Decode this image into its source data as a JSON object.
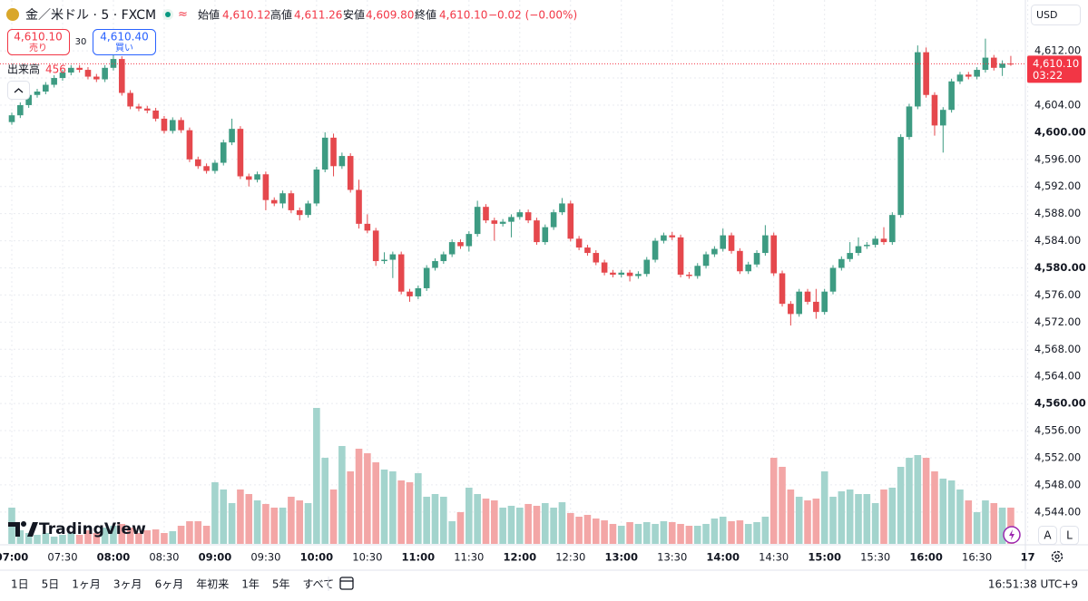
{
  "header": {
    "symbol": "金／米ドル · 5 · FXCM",
    "open_label": "始値",
    "open": "4,610.12",
    "high_label": "高値",
    "high": "4,611.26",
    "low_label": "安値",
    "low": "4,609.80",
    "close_label": "終値",
    "close": "4,610.10",
    "change": "−0.02 (−0.00%)",
    "sell_price": "4,610.10",
    "sell_label": "売り",
    "spread": "30",
    "buy_price": "4,610.40",
    "buy_label": "買い",
    "currency": "USD"
  },
  "chart_data": {
    "type": "candlestick",
    "volume_label": "出来高",
    "last_price_label": "4,610.10",
    "countdown": "03:22",
    "up_color": "#3d9b82",
    "down_color": "#e5484d",
    "volume_up_color": "#a3d4cd",
    "volume_down_color": "#f3a6a6",
    "grid": true,
    "x": [
      "07:00",
      "07:05",
      "07:10",
      "07:15",
      "07:20",
      "07:25",
      "07:30",
      "07:35",
      "07:40",
      "07:45",
      "07:50",
      "07:55",
      "08:00",
      "08:05",
      "08:10",
      "08:15",
      "08:20",
      "08:25",
      "08:30",
      "08:35",
      "08:40",
      "08:45",
      "08:50",
      "08:55",
      "09:00",
      "09:05",
      "09:10",
      "09:15",
      "09:20",
      "09:25",
      "09:30",
      "09:35",
      "09:40",
      "09:45",
      "09:50",
      "09:55",
      "10:00",
      "10:05",
      "10:10",
      "10:15",
      "10:20",
      "10:25",
      "10:30",
      "10:35",
      "10:40",
      "10:45",
      "10:50",
      "10:55",
      "11:00",
      "11:05",
      "11:10",
      "11:15",
      "11:20",
      "11:25",
      "11:30",
      "11:35",
      "11:40",
      "11:45",
      "11:50",
      "11:55",
      "12:00",
      "12:05",
      "12:10",
      "12:15",
      "12:20",
      "12:25",
      "12:30",
      "12:35",
      "12:40",
      "12:45",
      "12:50",
      "12:55",
      "13:00",
      "13:05",
      "13:10",
      "13:15",
      "13:20",
      "13:25",
      "13:30",
      "13:35",
      "13:40",
      "13:45",
      "13:50",
      "13:55",
      "14:00",
      "14:05",
      "14:10",
      "14:15",
      "14:20",
      "14:25",
      "14:30",
      "14:35",
      "14:40",
      "14:45",
      "14:50",
      "14:55",
      "15:00",
      "15:05",
      "15:10",
      "15:15",
      "15:20",
      "15:25",
      "15:30",
      "15:35",
      "15:40",
      "15:45",
      "15:50",
      "15:55",
      "16:00",
      "16:05",
      "16:10",
      "16:15",
      "16:20",
      "16:25",
      "16:30",
      "16:35",
      "16:40",
      "16:45",
      "16:50"
    ],
    "open": [
      4601.5,
      4602.5,
      4604.0,
      4605.5,
      4606.0,
      4607.0,
      4608.0,
      4608.8,
      4609.5,
      4609.2,
      4608.2,
      4607.8,
      4609.5,
      4610.8,
      4605.8,
      4603.8,
      4603.5,
      4603.2,
      4602.0,
      4600.2,
      4601.8,
      4600.3,
      4596.0,
      4595.0,
      4594.3,
      4595.5,
      4598.5,
      4600.5,
      4593.5,
      4593.0,
      4593.8,
      4590.0,
      4589.5,
      4591.0,
      4588.5,
      4587.8,
      4589.5,
      4594.5,
      4599.2,
      4595.0,
      4596.5,
      4591.5,
      4586.5,
      4585.5,
      4581.0,
      4581.2,
      4582.0,
      4576.5,
      4575.8,
      4577.0,
      4580.0,
      4581.0,
      4582.0,
      4583.8,
      4583.2,
      4585.0,
      4589.0,
      4587.0,
      4586.5,
      4586.8,
      4587.5,
      4588.2,
      4587.0,
      4583.8,
      4586.0,
      4588.2,
      4589.5,
      4584.3,
      4583.0,
      4582.2,
      4580.8,
      4579.3,
      4579.0,
      4579.3,
      4578.8,
      4579.1,
      4581.2,
      4584.0,
      4584.8,
      4584.5,
      4579.0,
      4578.8,
      4580.3,
      4582.0,
      4582.8,
      4584.8,
      4582.5,
      4579.5,
      4580.5,
      4582.2,
      4584.8,
      4579.2,
      4574.7,
      4573.2,
      4576.5,
      4575.0,
      4573.5,
      4576.5,
      4580.0,
      4581.3,
      4582.2,
      4583.2,
      4583.4,
      4584.3,
      4583.8,
      4587.8,
      4599.3,
      4603.8,
      4611.8,
      4605.5,
      4601.0,
      4603.3,
      4607.5,
      4608.5,
      4608.2,
      4609.2,
      4611.0,
      4609.5,
      4610.12
    ],
    "high": [
      4602.9,
      4604.4,
      4605.9,
      4606.4,
      4607.4,
      4608.4,
      4609.2,
      4609.9,
      4609.9,
      4609.6,
      4608.6,
      4609.9,
      4611.4,
      4611.2,
      4606.2,
      4604.2,
      4603.9,
      4603.6,
      4602.4,
      4602.2,
      4602.2,
      4600.7,
      4596.4,
      4595.4,
      4595.9,
      4598.9,
      4602.0,
      4600.9,
      4593.9,
      4594.2,
      4594.2,
      4590.4,
      4591.4,
      4591.4,
      4588.9,
      4589.9,
      4594.9,
      4600.0,
      4599.8,
      4597.0,
      4596.9,
      4593.0,
      4587.9,
      4585.9,
      4582.3,
      4582.4,
      4582.4,
      4576.9,
      4577.4,
      4580.4,
      4581.4,
      4582.4,
      4584.2,
      4584.2,
      4585.4,
      4589.9,
      4589.4,
      4587.4,
      4587.2,
      4587.9,
      4588.6,
      4588.6,
      4587.4,
      4586.4,
      4588.6,
      4590.3,
      4589.9,
      4584.7,
      4583.4,
      4582.6,
      4581.2,
      4579.7,
      4579.7,
      4579.7,
      4579.5,
      4581.6,
      4584.4,
      4585.2,
      4585.3,
      4584.9,
      4579.4,
      4580.7,
      4582.4,
      4583.2,
      4585.8,
      4585.2,
      4582.9,
      4580.9,
      4582.6,
      4586.3,
      4585.2,
      4579.6,
      4575.1,
      4576.9,
      4576.9,
      4576.9,
      4576.9,
      4580.4,
      4581.7,
      4583.8,
      4584.5,
      4583.8,
      4584.7,
      4586.0,
      4588.2,
      4599.7,
      4604.2,
      4612.8,
      4612.5,
      4605.9,
      4603.7,
      4607.9,
      4608.9,
      4608.9,
      4609.6,
      4613.8,
      4611.4,
      4610.6,
      4611.26
    ],
    "low": [
      4601.1,
      4602.1,
      4603.6,
      4605.1,
      4605.6,
      4606.6,
      4607.6,
      4608.4,
      4608.8,
      4607.8,
      4607.4,
      4607.4,
      4609.1,
      4605.4,
      4603.4,
      4603.1,
      4602.8,
      4601.6,
      4599.8,
      4599.8,
      4599.9,
      4595.6,
      4594.6,
      4593.9,
      4593.9,
      4595.1,
      4598.1,
      4593.1,
      4592.0,
      4592.6,
      4588.5,
      4589.1,
      4588.8,
      4588.1,
      4587.0,
      4587.4,
      4589.1,
      4594.1,
      4593.5,
      4594.6,
      4591.1,
      4585.8,
      4585.1,
      4580.3,
      4580.6,
      4578.5,
      4576.1,
      4575.0,
      4575.4,
      4576.6,
      4579.6,
      4580.6,
      4581.6,
      4582.8,
      4582.4,
      4584.6,
      4586.6,
      4584.0,
      4586.1,
      4584.5,
      4587.1,
      4586.6,
      4583.4,
      4583.4,
      4585.6,
      4587.8,
      4583.9,
      4582.6,
      4581.8,
      4580.4,
      4578.9,
      4578.6,
      4578.6,
      4578.0,
      4578.4,
      4578.7,
      4580.8,
      4583.6,
      4584.1,
      4578.6,
      4578.4,
      4578.4,
      4579.9,
      4581.6,
      4582.4,
      4582.1,
      4579.1,
      4579.1,
      4580.1,
      4581.8,
      4578.8,
      4574.3,
      4571.5,
      4572.8,
      4574.6,
      4572.5,
      4573.1,
      4576.1,
      4579.6,
      4580.9,
      4581.8,
      4582.8,
      4583.0,
      4583.4,
      4583.4,
      4587.4,
      4598.9,
      4603.4,
      4605.1,
      4599.5,
      4597.0,
      4602.9,
      4607.1,
      4607.8,
      4607.8,
      4608.8,
      4609.1,
      4608.3,
      4609.8
    ],
    "close": [
      4602.5,
      4604.0,
      4605.5,
      4606.0,
      4607.0,
      4608.0,
      4608.8,
      4609.5,
      4609.2,
      4608.2,
      4607.8,
      4609.5,
      4610.8,
      4605.8,
      4603.8,
      4603.5,
      4603.2,
      4602.0,
      4600.2,
      4601.8,
      4600.3,
      4596.0,
      4595.0,
      4594.3,
      4595.5,
      4598.5,
      4600.5,
      4593.5,
      4593.0,
      4593.8,
      4590.0,
      4589.5,
      4591.0,
      4588.5,
      4587.8,
      4589.5,
      4594.5,
      4599.2,
      4595.0,
      4596.5,
      4591.5,
      4586.5,
      4585.5,
      4581.0,
      4581.2,
      4582.0,
      4576.5,
      4575.8,
      4577.0,
      4580.0,
      4581.0,
      4582.0,
      4583.8,
      4583.2,
      4585.0,
      4589.0,
      4587.0,
      4586.5,
      4586.8,
      4587.5,
      4588.2,
      4587.0,
      4583.8,
      4586.0,
      4588.2,
      4589.5,
      4584.3,
      4583.0,
      4582.2,
      4580.8,
      4579.3,
      4579.0,
      4579.3,
      4578.8,
      4579.1,
      4581.2,
      4584.0,
      4584.8,
      4584.5,
      4579.0,
      4578.8,
      4580.3,
      4582.0,
      4582.8,
      4584.8,
      4582.5,
      4579.5,
      4580.5,
      4582.2,
      4584.8,
      4579.2,
      4574.7,
      4573.2,
      4576.5,
      4575.0,
      4573.5,
      4576.5,
      4580.0,
      4581.3,
      4582.2,
      4583.2,
      4583.4,
      4584.3,
      4583.8,
      4587.8,
      4599.3,
      4603.8,
      4611.8,
      4605.5,
      4601.0,
      4603.3,
      4607.5,
      4608.5,
      4608.2,
      4609.2,
      4611.0,
      4609.5,
      4610.12,
      4610.1
    ],
    "volume": [
      456,
      171,
      137,
      114,
      137,
      91,
      114,
      137,
      114,
      171,
      137,
      205,
      228,
      251,
      205,
      137,
      171,
      182,
      137,
      160,
      228,
      285,
      285,
      228,
      775,
      684,
      513,
      684,
      627,
      547,
      502,
      456,
      456,
      593,
      547,
      513,
      1710,
      1083,
      684,
      1231,
      912,
      1197,
      1140,
      1026,
      935,
      912,
      798,
      775,
      889,
      593,
      627,
      593,
      285,
      399,
      707,
      627,
      570,
      547,
      456,
      479,
      456,
      502,
      479,
      513,
      456,
      524,
      388,
      342,
      365,
      319,
      296,
      251,
      228,
      274,
      251,
      274,
      251,
      285,
      274,
      251,
      228,
      228,
      251,
      319,
      342,
      285,
      296,
      251,
      274,
      342,
      1083,
      969,
      684,
      593,
      547,
      570,
      912,
      593,
      661,
      684,
      627,
      627,
      513,
      684,
      707,
      969,
      1083,
      1117,
      1083,
      912,
      821,
      798,
      684,
      547,
      399,
      547,
      513,
      456,
      456
    ],
    "ylim": [
      4539.3,
      4619.5
    ],
    "yticks": [
      {
        "value": 4612,
        "label": "4,612.00"
      },
      {
        "value": 4608,
        "label": "4,608.00"
      },
      {
        "value": 4604,
        "label": "4,604.00"
      },
      {
        "value": 4600,
        "label": "4,600.00"
      },
      {
        "value": 4596,
        "label": "4,596.00"
      },
      {
        "value": 4592,
        "label": "4,592.00"
      },
      {
        "value": 4588,
        "label": "4,588.00"
      },
      {
        "value": 4584,
        "label": "4,584.00"
      },
      {
        "value": 4580,
        "label": "4,580.00"
      },
      {
        "value": 4576,
        "label": "4,576.00"
      },
      {
        "value": 4572,
        "label": "4,572.00"
      },
      {
        "value": 4568,
        "label": "4,568.00"
      },
      {
        "value": 4564,
        "label": "4,564.00"
      },
      {
        "value": 4560,
        "label": "4,560.00"
      },
      {
        "value": 4556,
        "label": "4,556.00"
      },
      {
        "value": 4552,
        "label": "4,552.00"
      },
      {
        "value": 4548,
        "label": "4,548.00"
      },
      {
        "value": 4544,
        "label": "4,544.00"
      }
    ],
    "xticks": [
      "07:00",
      "07:30",
      "08:00",
      "08:30",
      "09:00",
      "09:30",
      "10:00",
      "10:30",
      "11:00",
      "11:30",
      "12:00",
      "12:30",
      "13:00",
      "13:30",
      "14:00",
      "14:30",
      "15:00",
      "15:30",
      "16:00",
      "16:30",
      {
        "value": "17:00",
        "label": "17"
      }
    ]
  },
  "watermark": "TradingView",
  "scale_buttons": [
    "A",
    "L"
  ],
  "toolbar": {
    "ranges": [
      "1日",
      "5日",
      "1ヶ月",
      "3ヶ月",
      "6ヶ月",
      "年初来",
      "1年",
      "5年",
      "すべて"
    ],
    "clock": "16:51:38 UTC+9"
  }
}
